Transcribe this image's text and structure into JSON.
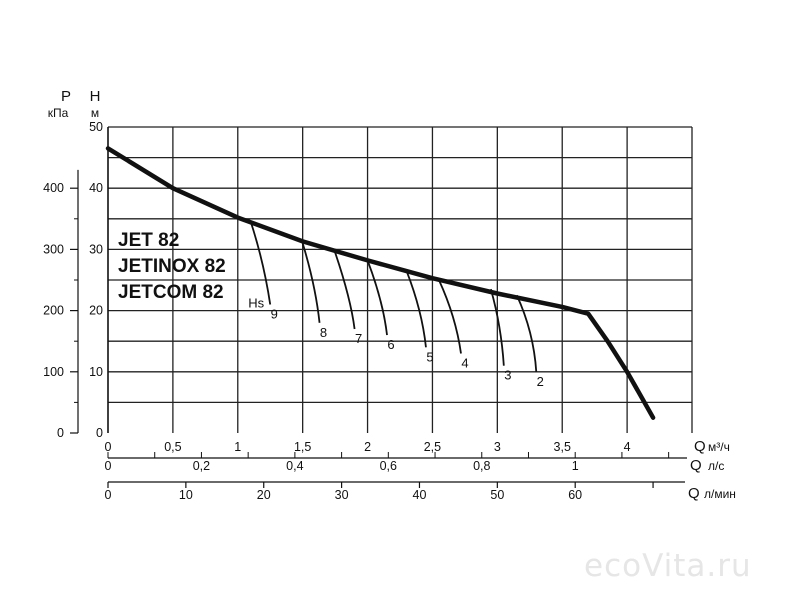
{
  "chart_data": {
    "type": "line",
    "models": [
      "JET 82",
      "JETINOX 82",
      "JETCOM 82"
    ],
    "y_axis": {
      "left": {
        "label": "P",
        "unit": "кПа",
        "ticks": [
          "0",
          "100",
          "200",
          "300",
          "400"
        ],
        "values": [
          0,
          100,
          200,
          300,
          400
        ]
      },
      "right": {
        "label": "H",
        "unit": "м",
        "ticks": [
          "0",
          "10",
          "20",
          "30",
          "40",
          "50"
        ],
        "values": [
          0,
          10,
          20,
          30,
          40,
          50
        ]
      },
      "ylim_m": [
        0,
        50
      ]
    },
    "x_axes": [
      {
        "label": "Q",
        "unit": "м³/ч",
        "ticks": [
          "0",
          "0,5",
          "1",
          "1,5",
          "2",
          "2,5",
          "3",
          "3,5",
          "4"
        ],
        "values": [
          0,
          0.5,
          1,
          1.5,
          2,
          2.5,
          3,
          3.5,
          4
        ]
      },
      {
        "label": "Q",
        "unit": "л/с",
        "ticks": [
          "0",
          "0,2",
          "0,4",
          "0,6",
          "0,8",
          "1"
        ],
        "values": [
          0,
          0.2,
          0.4,
          0.6,
          0.8,
          1
        ]
      },
      {
        "label": "Q",
        "unit": "л/мин",
        "ticks": [
          "0",
          "10",
          "20",
          "30",
          "40",
          "50",
          "60"
        ],
        "values": [
          0,
          10,
          20,
          30,
          40,
          50,
          60
        ]
      }
    ],
    "xlim_m3h": [
      0,
      4.5
    ],
    "grid": true,
    "series": [
      {
        "x": [
          0,
          0.5,
          1,
          1.5,
          2,
          2.5,
          3,
          3.5,
          3.7,
          3.85,
          4,
          4.2
        ],
        "y": [
          46.5,
          40,
          35.2,
          31.3,
          28.2,
          25.3,
          22.8,
          20.6,
          19.5,
          15,
          10,
          2.5
        ]
      }
    ],
    "suction_label": "Hs",
    "suction_curves": [
      {
        "label": "9",
        "x": [
          1.1,
          1.2,
          1.25
        ],
        "y": [
          34.5,
          28,
          21
        ]
      },
      {
        "label": "8",
        "x": [
          1.5,
          1.6,
          1.63
        ],
        "y": [
          31,
          24,
          18
        ]
      },
      {
        "label": "7",
        "x": [
          1.75,
          1.87,
          1.9
        ],
        "y": [
          29.5,
          22,
          17
        ]
      },
      {
        "label": "6",
        "x": [
          2,
          2.12,
          2.15
        ],
        "y": [
          28.2,
          21.5,
          16
        ]
      },
      {
        "label": "5",
        "x": [
          2.3,
          2.42,
          2.45
        ],
        "y": [
          26.5,
          20,
          14
        ]
      },
      {
        "label": "4",
        "x": [
          2.55,
          2.68,
          2.72
        ],
        "y": [
          25,
          19,
          13
        ]
      },
      {
        "label": "3",
        "x": [
          2.95,
          3.03,
          3.05
        ],
        "y": [
          23.5,
          17.5,
          11
        ]
      },
      {
        "label": "2",
        "x": [
          3.15,
          3.28,
          3.3
        ],
        "y": [
          22.5,
          16.5,
          10
        ]
      }
    ]
  },
  "watermark": "ecoVita.ru"
}
